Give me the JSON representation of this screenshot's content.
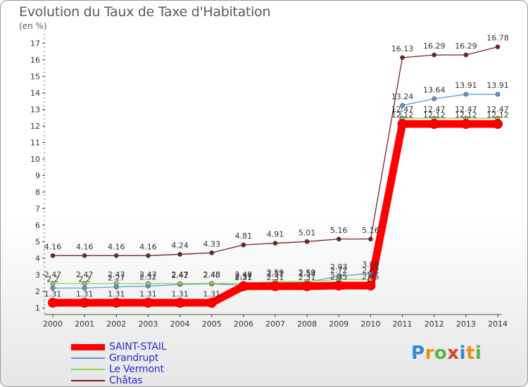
{
  "chart_data": {
    "type": "line",
    "title": "Evolution du Taux de Taxe d'Habitation",
    "ylabel": "(en %)",
    "xlabel": "",
    "x": [
      2000,
      2001,
      2002,
      2003,
      2004,
      2005,
      2006,
      2007,
      2008,
      2009,
      2010,
      2011,
      2012,
      2013,
      2014
    ],
    "ylim": [
      0.6,
      17.4
    ],
    "yticks": [
      1,
      2,
      3,
      4,
      5,
      6,
      7,
      8,
      9,
      10,
      11,
      12,
      13,
      14,
      15,
      16,
      17
    ],
    "series": [
      {
        "name": "SAINT-STAIL",
        "color": "#ff0000",
        "values": [
          1.31,
          1.31,
          1.31,
          1.31,
          1.31,
          1.31,
          2.31,
          2.31,
          2.31,
          2.35,
          2.35,
          12.12,
          12.12,
          12.12,
          12.12
        ],
        "labels": [
          "1.31",
          "1.31",
          "1.31",
          "1.31",
          "1.31",
          "1.31",
          "2.31",
          "2.31",
          "2.31",
          "2.35",
          "2.35",
          "12.12",
          "12.12",
          "12.12",
          "12.12"
        ]
      },
      {
        "name": "Grandrupt",
        "color": "#5b9bd5",
        "values": [
          2.2,
          2.2,
          2.27,
          2.32,
          2.42,
          2.45,
          2.37,
          2.51,
          2.54,
          2.93,
          3.08,
          13.24,
          13.64,
          13.91,
          13.91
        ],
        "labels": [
          "2.2",
          "2.2",
          "2.27",
          "2.32",
          "2.42",
          "2.45",
          "2.37",
          "2.51",
          "2.54",
          "2.93",
          "3.08",
          "13.24",
          "13.64",
          "13.91",
          "13.91"
        ]
      },
      {
        "name": "Le Vermont",
        "color": "#8fd35a",
        "values": [
          2.47,
          2.47,
          2.47,
          2.47,
          2.47,
          2.48,
          2.48,
          2.59,
          2.59,
          2.72,
          2.72,
          12.47,
          12.47,
          12.47,
          12.47
        ],
        "labels": [
          "2.47",
          "2.47",
          "2.47",
          "2.47",
          "2.47",
          "2.48",
          "2.48",
          "2.59",
          "2.59",
          "2.72",
          "2.72",
          "12.47",
          "12.47",
          "12.47",
          "12.47"
        ]
      },
      {
        "name": "Châtas",
        "color": "#7a2020",
        "values": [
          4.16,
          4.16,
          4.16,
          4.16,
          4.24,
          4.33,
          4.81,
          4.91,
          5.01,
          5.16,
          5.16,
          16.13,
          16.29,
          16.29,
          16.78
        ],
        "labels": [
          "4.16",
          "4.16",
          "4.16",
          "4.16",
          "4.24",
          "4.33",
          "4.81",
          "4.91",
          "5.01",
          "5.16",
          "5.16",
          "16.13",
          "16.29",
          "16.29",
          "16.78"
        ]
      }
    ]
  },
  "logo": {
    "letters": [
      "P",
      "r",
      "o",
      "x",
      "i",
      "t",
      "i"
    ],
    "colors": [
      "#2f8bd6",
      "#f28a1a",
      "#59b34a",
      "#e23d28",
      "#2f8bd6",
      "#f28a1a",
      "#59b34a"
    ]
  }
}
